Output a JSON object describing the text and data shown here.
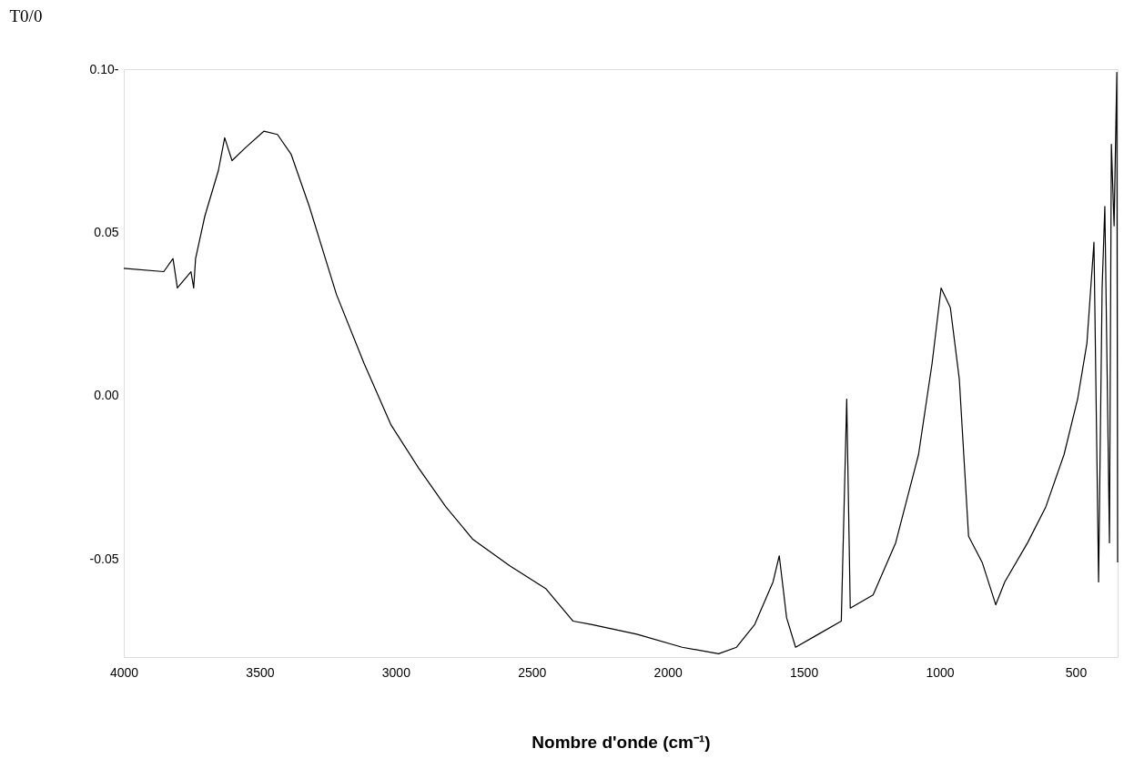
{
  "chart_data": {
    "type": "line",
    "xlabel": "Nombre d'onde (cm⁻¹)",
    "ylabel": "T0/0",
    "grid": false,
    "marker": "none",
    "line_style": "solid",
    "xlim": [
      4000,
      346
    ],
    "xticks": [
      4000,
      3500,
      3000,
      2500,
      2000,
      1500,
      1000,
      500
    ],
    "ylim": [
      -0.08,
      0.1
    ],
    "yticks": [
      {
        "value": 0.1,
        "label": "0.10-"
      },
      {
        "value": 0.05,
        "label": "0.05"
      },
      {
        "value": 0,
        "label": "0.00"
      },
      {
        "value": -0.05,
        "label": "-0.05"
      }
    ],
    "series": [
      {
        "color": "#000000",
        "x": [
          4000,
          3853,
          3819,
          3803,
          3753,
          3743,
          3736,
          3702,
          3652,
          3629,
          3602,
          3552,
          3485,
          3435,
          3385,
          3318,
          3218,
          3117,
          3017,
          2917,
          2816,
          2716,
          2582,
          2449,
          2348,
          2282,
          2114,
          1947,
          1813,
          1747,
          1680,
          1613,
          1590,
          1563,
          1530,
          1446,
          1362,
          1342,
          1329,
          1245,
          1162,
          1078,
          1028,
          995,
          961,
          928,
          894,
          844,
          794,
          761,
          677,
          610,
          543,
          493,
          459,
          433,
          416,
          403,
          393,
          376,
          369,
          359,
          349,
          346
        ],
        "values": [
          0.039,
          0.038,
          0.042,
          0.033,
          0.038,
          0.033,
          0.042,
          0.055,
          0.069,
          0.079,
          0.072,
          0.076,
          0.081,
          0.08,
          0.074,
          0.058,
          0.031,
          0.01,
          -0.009,
          -0.022,
          -0.034,
          -0.044,
          -0.052,
          -0.059,
          -0.069,
          -0.07,
          -0.073,
          -0.077,
          -0.079,
          -0.077,
          -0.07,
          -0.057,
          -0.049,
          -0.068,
          -0.077,
          -0.073,
          -0.069,
          -0.001,
          -0.065,
          -0.061,
          -0.045,
          -0.018,
          0.01,
          0.033,
          0.027,
          0.005,
          -0.043,
          -0.051,
          -0.064,
          -0.057,
          -0.045,
          -0.034,
          -0.018,
          -0.001,
          0.016,
          0.047,
          -0.057,
          0.033,
          0.058,
          -0.045,
          0.077,
          0.052,
          0.099,
          -0.051
        ]
      }
    ]
  }
}
